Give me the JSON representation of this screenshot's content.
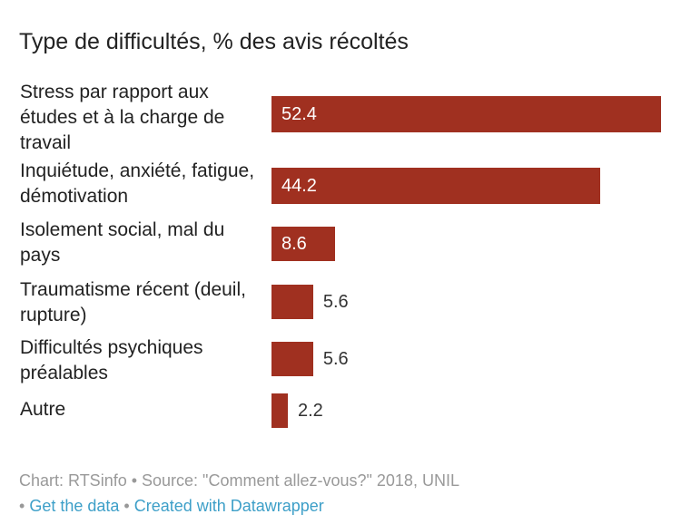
{
  "chart_data": {
    "type": "bar",
    "orientation": "horizontal",
    "title": "Type de difficultés, % des avis récoltés",
    "categories": [
      "Stress par rapport aux études et à la charge de travail",
      "Inquiétude, anxiété, fatigue, démotivation",
      "Isolement social, mal du pays",
      "Traumatisme récent (deuil, rupture)",
      "Difficultés psychiques préalables",
      "Autre"
    ],
    "values": [
      52.4,
      44.2,
      8.6,
      5.6,
      5.6,
      2.2
    ],
    "value_labels": [
      "52.4",
      "44.2",
      "8.6",
      "5.6",
      "5.6",
      "2.2"
    ],
    "xlim": [
      0,
      52.4
    ],
    "color": "#a03020",
    "grid": false
  },
  "footer": {
    "source_text": "Chart: RTSinfo • Source: \"Comment allez-vous?\" 2018, UNIL",
    "sep1": "• ",
    "get_data": "Get the data",
    "sep2": " • ",
    "created_with": "Created with Datawrapper"
  }
}
